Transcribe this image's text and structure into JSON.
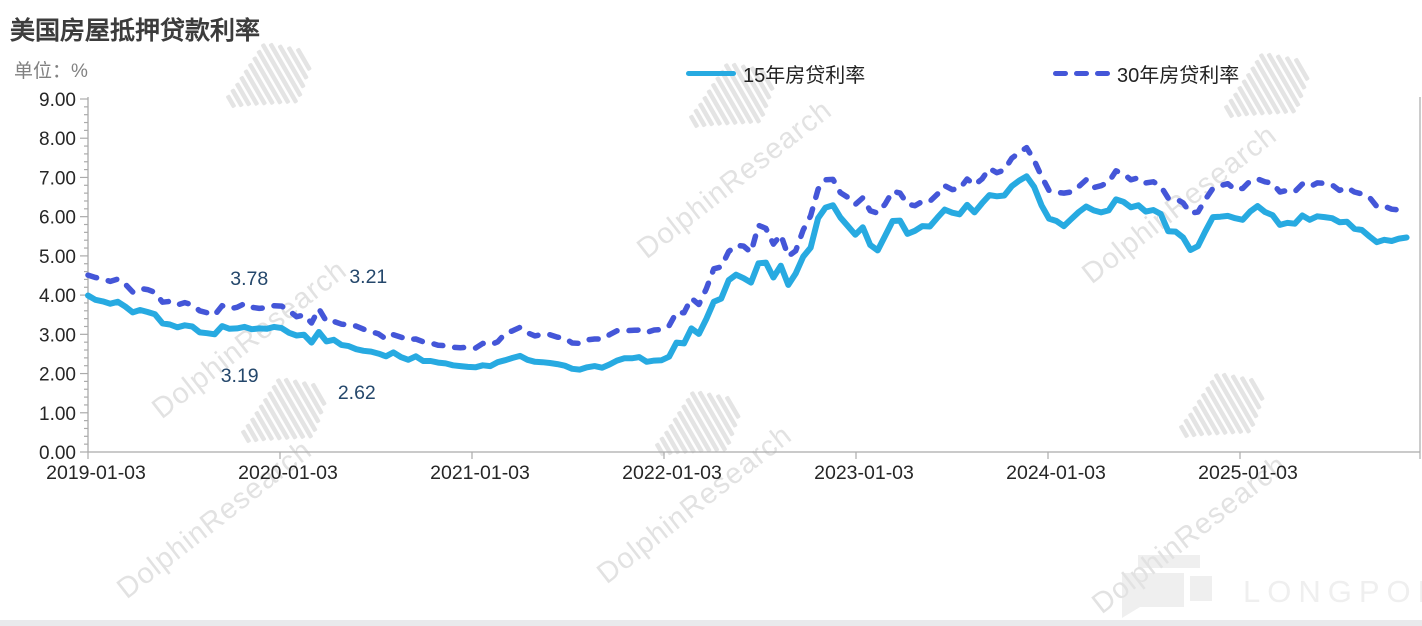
{
  "header": {
    "title": "美国房屋抵押贷款利率",
    "unit_label": "单位：%"
  },
  "legend": {
    "items": [
      {
        "label": "15年房贷利率"
      },
      {
        "label": "30年房贷利率"
      }
    ]
  },
  "watermark": {
    "text": "DolphinResearch",
    "brand": "LONGPORT"
  },
  "chart_data": {
    "type": "line",
    "title": "美国房屋抵押贷款利率",
    "unit": "%",
    "xlabel": "",
    "ylabel": "单位：%",
    "ylim": [
      0,
      9
    ],
    "y_tick_labels": [
      "0.00",
      "1.00",
      "2.00",
      "3.00",
      "4.00",
      "5.00",
      "6.00",
      "7.00",
      "8.00",
      "9.00"
    ],
    "y_minor_tick_step": 0.2,
    "x_tick_labels": [
      "2019-01-03",
      "2020-01-03",
      "2021-01-03",
      "2022-01-03",
      "2023-01-03",
      "2024-01-03",
      "2025-01-03"
    ],
    "grid": false,
    "legend_position": "top",
    "axis_color": "#ABABAB",
    "annotation_color": "#24476B",
    "t_step_years": 0.0388,
    "series": [
      {
        "name": "15年房贷利率",
        "color": "#27AAE1",
        "line_style": "solid",
        "values": [
          3.99,
          3.88,
          3.84,
          3.78,
          3.83,
          3.71,
          3.56,
          3.62,
          3.57,
          3.51,
          3.28,
          3.25,
          3.18,
          3.23,
          3.2,
          3.05,
          3.03,
          3.0,
          3.21,
          3.14,
          3.15,
          3.19,
          3.13,
          3.15,
          3.14,
          3.19,
          3.16,
          3.04,
          2.97,
          2.99,
          2.79,
          3.06,
          2.82,
          2.86,
          2.73,
          2.7,
          2.62,
          2.58,
          2.56,
          2.51,
          2.44,
          2.54,
          2.42,
          2.35,
          2.44,
          2.32,
          2.32,
          2.28,
          2.26,
          2.21,
          2.19,
          2.17,
          2.16,
          2.21,
          2.19,
          2.29,
          2.34,
          2.4,
          2.45,
          2.35,
          2.3,
          2.29,
          2.27,
          2.24,
          2.2,
          2.12,
          2.1,
          2.16,
          2.19,
          2.15,
          2.23,
          2.33,
          2.39,
          2.39,
          2.42,
          2.3,
          2.33,
          2.34,
          2.43,
          2.79,
          2.77,
          3.15,
          3.01,
          3.39,
          3.83,
          3.91,
          4.38,
          4.52,
          4.43,
          4.32,
          4.81,
          4.83,
          4.45,
          4.75,
          4.26,
          4.55,
          4.98,
          5.21,
          5.96,
          6.23,
          6.29,
          5.98,
          5.76,
          5.54,
          5.73,
          5.28,
          5.14,
          5.51,
          5.89,
          5.9,
          5.56,
          5.64,
          5.76,
          5.75,
          5.97,
          6.18,
          6.1,
          6.06,
          6.3,
          6.11,
          6.34,
          6.55,
          6.52,
          6.54,
          6.78,
          6.92,
          7.03,
          6.76,
          6.29,
          5.95,
          5.89,
          5.76,
          5.94,
          6.12,
          6.26,
          6.16,
          6.11,
          6.16,
          6.44,
          6.38,
          6.24,
          6.29,
          6.13,
          6.17,
          6.07,
          5.63,
          5.62,
          5.47,
          5.15,
          5.25,
          5.63,
          5.99,
          6.0,
          6.02,
          5.96,
          5.92,
          6.13,
          6.27,
          6.12,
          6.04,
          5.79,
          5.84,
          5.82,
          6.03,
          5.92,
          6.01,
          5.99,
          5.96,
          5.86,
          5.87,
          5.69,
          5.66,
          5.5,
          5.35,
          5.41,
          5.38,
          5.44,
          5.47
        ]
      },
      {
        "name": "30年房贷利率",
        "color": "#4456D8",
        "line_style": "dashed",
        "values": [
          4.51,
          4.45,
          4.41,
          4.35,
          4.41,
          4.28,
          4.08,
          4.17,
          4.14,
          4.07,
          3.82,
          3.84,
          3.75,
          3.81,
          3.75,
          3.6,
          3.55,
          3.49,
          3.73,
          3.65,
          3.69,
          3.78,
          3.69,
          3.66,
          3.68,
          3.73,
          3.72,
          3.6,
          3.45,
          3.49,
          3.29,
          3.65,
          3.33,
          3.33,
          3.26,
          3.24,
          3.21,
          3.13,
          3.07,
          3.01,
          2.88,
          2.99,
          2.93,
          2.87,
          2.88,
          2.81,
          2.78,
          2.72,
          2.71,
          2.67,
          2.66,
          2.67,
          2.65,
          2.77,
          2.73,
          2.81,
          3.02,
          3.09,
          3.18,
          3.04,
          2.96,
          3.0,
          2.99,
          2.93,
          2.9,
          2.78,
          2.77,
          2.86,
          2.88,
          2.88,
          2.99,
          3.09,
          3.09,
          3.1,
          3.11,
          3.05,
          3.11,
          3.12,
          3.22,
          3.56,
          3.55,
          3.92,
          3.76,
          4.16,
          4.67,
          4.72,
          5.11,
          5.27,
          5.25,
          5.09,
          5.78,
          5.7,
          5.3,
          5.54,
          4.99,
          5.13,
          5.66,
          6.02,
          6.7,
          6.94,
          6.95,
          6.61,
          6.49,
          6.31,
          6.48,
          6.15,
          6.09,
          6.32,
          6.65,
          6.6,
          6.32,
          6.28,
          6.39,
          6.39,
          6.57,
          6.79,
          6.69,
          6.71,
          6.96,
          6.81,
          6.96,
          7.23,
          7.12,
          7.19,
          7.49,
          7.63,
          7.76,
          7.44,
          7.03,
          6.67,
          6.62,
          6.6,
          6.63,
          6.77,
          6.94,
          6.74,
          6.79,
          6.88,
          7.17,
          7.09,
          6.94,
          6.99,
          6.86,
          6.89,
          6.78,
          6.47,
          6.46,
          6.35,
          6.09,
          6.12,
          6.44,
          6.72,
          6.79,
          6.84,
          6.69,
          6.72,
          6.91,
          6.96,
          6.89,
          6.85,
          6.63,
          6.67,
          6.64,
          6.83,
          6.76,
          6.86,
          6.85,
          6.81,
          6.67,
          6.74,
          6.63,
          6.58,
          6.5,
          6.26,
          6.27,
          6.19,
          6.17,
          6.22
        ]
      }
    ],
    "annotations": [
      {
        "text": "3.78",
        "t": 0.84,
        "v": 4.44
      },
      {
        "text": "3.21",
        "t": 1.46,
        "v": 4.49
      },
      {
        "text": "3.19",
        "t": 0.79,
        "v": 1.96
      },
      {
        "text": "2.62",
        "t": 1.4,
        "v": 1.53
      }
    ]
  }
}
